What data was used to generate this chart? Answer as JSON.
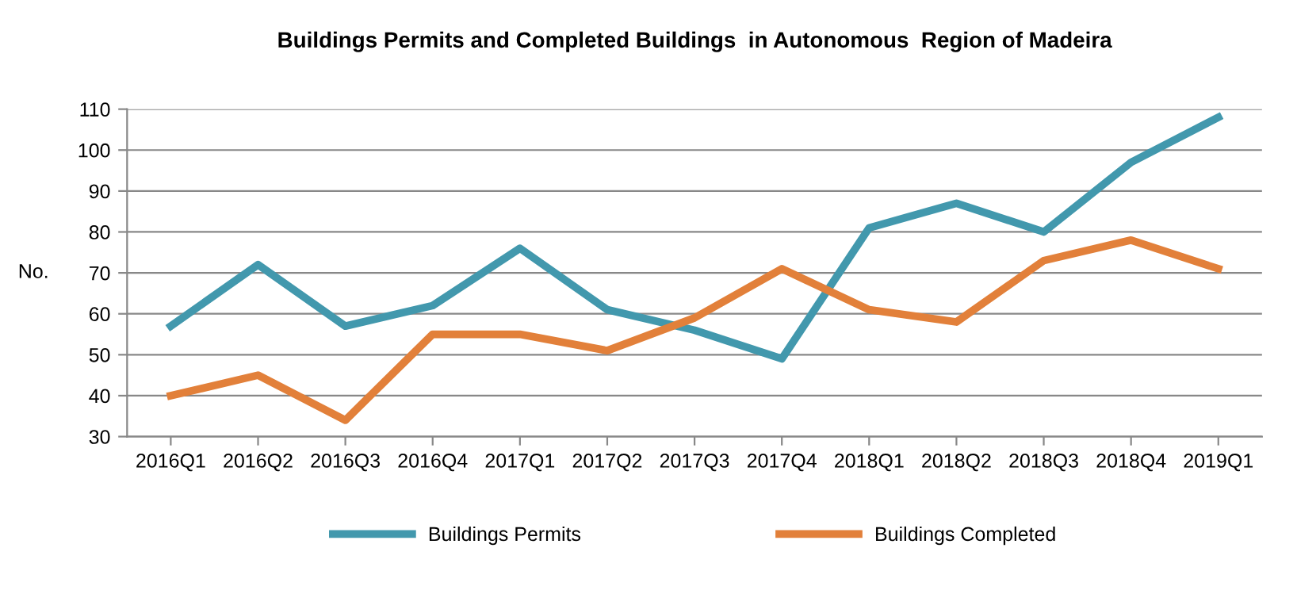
{
  "chart_data": {
    "type": "line",
    "title": "Buildings Permits and Completed Buildings  in Autonomous  Region of Madeira",
    "ylabel": "No.",
    "categories": [
      "2016Q1",
      "2016Q2",
      "2016Q3",
      "2016Q4",
      "2017Q1",
      "2017Q2",
      "2017Q3",
      "2017Q4",
      "2018Q1",
      "2018Q2",
      "2018Q3",
      "2018Q4",
      "2019Q1"
    ],
    "series": [
      {
        "name": "Buildings Permits",
        "color": "#4298ad",
        "values": [
          57,
          72,
          57,
          62,
          76,
          61,
          56,
          49,
          81,
          87,
          80,
          97,
          108
        ]
      },
      {
        "name": "Buildings Completed",
        "color": "#e2803a",
        "values": [
          40,
          45,
          34,
          55,
          55,
          51,
          59,
          71,
          61,
          58,
          73,
          78,
          71
        ]
      }
    ],
    "ylim": [
      30,
      110
    ],
    "yticks": [
      30,
      40,
      50,
      60,
      70,
      80,
      90,
      100,
      110
    ],
    "grid": "y",
    "legend": "bottom",
    "marker": "none",
    "line_style": "solid"
  }
}
